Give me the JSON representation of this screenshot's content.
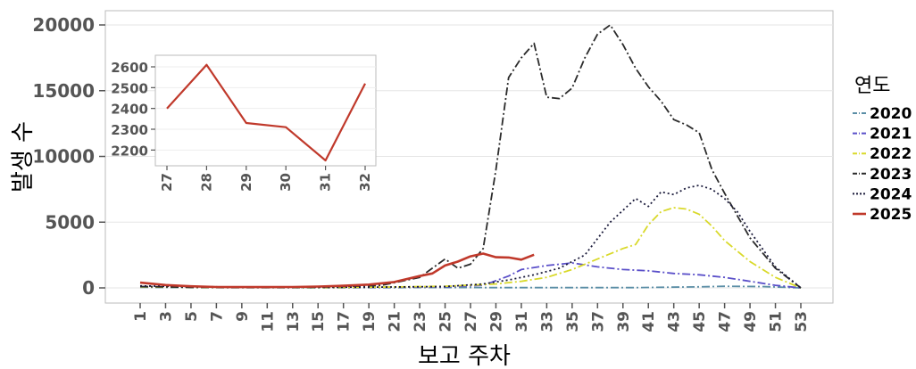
{
  "chart_data": [
    {
      "type": "line",
      "xlabel": "보고 주차",
      "ylabel": "발생 수",
      "xlim": [
        1,
        53
      ],
      "ylim": [
        0,
        20000
      ],
      "yticks": [
        "0",
        "5000",
        "10000",
        "15000",
        "20000"
      ],
      "xticks": [
        "1",
        "3",
        "5",
        "7",
        "9",
        "11",
        "13",
        "15",
        "17",
        "19",
        "21",
        "23",
        "25",
        "27",
        "29",
        "31",
        "33",
        "35",
        "37",
        "39",
        "41",
        "43",
        "45",
        "47",
        "49",
        "51",
        "53"
      ],
      "legend": {
        "title": "연도",
        "placement": "right"
      },
      "series": [
        {
          "name": "2020",
          "color": "#5b8ea6",
          "dash": "dashdot",
          "x": [
            1,
            5,
            10,
            15,
            20,
            25,
            30,
            35,
            40,
            45,
            47,
            50,
            53
          ],
          "y": [
            50,
            20,
            10,
            10,
            20,
            30,
            20,
            20,
            20,
            80,
            120,
            100,
            0
          ]
        },
        {
          "name": "2021",
          "color": "#5a4fc9",
          "dash": "dashdot",
          "x": [
            1,
            5,
            10,
            15,
            20,
            25,
            28,
            30,
            31,
            33,
            35,
            37,
            39,
            41,
            43,
            45,
            47,
            49,
            51,
            53
          ],
          "y": [
            100,
            50,
            30,
            30,
            50,
            80,
            200,
            900,
            1400,
            1700,
            1900,
            1600,
            1400,
            1300,
            1100,
            1000,
            800,
            500,
            200,
            0
          ]
        },
        {
          "name": "2022",
          "color": "#d9d92a",
          "dash": "dashdot",
          "x": [
            1,
            5,
            10,
            15,
            20,
            25,
            29,
            31,
            33,
            35,
            37,
            39,
            40,
            41,
            42,
            43,
            44,
            45,
            46,
            47,
            49,
            51,
            53
          ],
          "y": [
            80,
            40,
            30,
            30,
            60,
            120,
            300,
            500,
            800,
            1400,
            2200,
            3000,
            3300,
            4800,
            5800,
            6100,
            6000,
            5600,
            4700,
            3600,
            2000,
            800,
            0
          ]
        },
        {
          "name": "2023",
          "color": "#2b2b2b",
          "dash": "dashdot",
          "x": [
            1,
            5,
            10,
            15,
            20,
            23,
            25,
            26,
            27,
            28,
            29,
            30,
            31,
            32,
            33,
            34,
            35,
            36,
            37,
            38,
            39,
            40,
            41,
            42,
            43,
            44,
            45,
            46,
            47,
            48,
            49,
            51,
            53
          ],
          "y": [
            100,
            50,
            40,
            50,
            200,
            800,
            2200,
            1500,
            1800,
            3000,
            9000,
            16000,
            17500,
            18600,
            14500,
            14400,
            15200,
            17500,
            19300,
            20000,
            18500,
            16700,
            15300,
            14200,
            12800,
            12400,
            11800,
            9000,
            7200,
            5500,
            3800,
            1500,
            0
          ]
        },
        {
          "name": "2024",
          "color": "#1a1a3a",
          "dash": "dotted",
          "x": [
            1,
            5,
            10,
            15,
            20,
            25,
            28,
            30,
            32,
            34,
            36,
            38,
            40,
            41,
            42,
            43,
            44,
            45,
            46,
            47,
            48,
            49,
            51,
            53
          ],
          "y": [
            150,
            100,
            50,
            40,
            60,
            100,
            300,
            600,
            1000,
            1500,
            2500,
            5000,
            6800,
            6200,
            7300,
            7100,
            7600,
            7800,
            7500,
            6800,
            5800,
            4300,
            1600,
            0
          ]
        },
        {
          "name": "2025",
          "color": "#c0392b",
          "dash": "solid",
          "x": [
            1,
            3,
            5,
            7,
            9,
            11,
            13,
            15,
            17,
            19,
            21,
            23,
            24,
            25,
            26,
            27,
            28,
            29,
            30,
            31,
            32
          ],
          "y": [
            400,
            220,
            120,
            70,
            60,
            60,
            70,
            100,
            160,
            250,
            450,
            900,
            1100,
            1700,
            2000,
            2400,
            2610,
            2330,
            2310,
            2150,
            2520
          ]
        }
      ]
    },
    {
      "type": "line",
      "xlabel": "",
      "ylabel": "",
      "xlim": [
        27,
        32
      ],
      "ylim": [
        2150,
        2630
      ],
      "yticks": [
        "2200",
        "2300",
        "2400",
        "2500",
        "2600"
      ],
      "xticks": [
        "27",
        "28",
        "29",
        "30",
        "31",
        "32"
      ],
      "series": [
        {
          "name": "2025",
          "color": "#c0392b",
          "x": [
            27,
            28,
            29,
            30,
            31,
            32
          ],
          "y": [
            2400,
            2610,
            2330,
            2310,
            2150,
            2520
          ]
        }
      ]
    }
  ]
}
